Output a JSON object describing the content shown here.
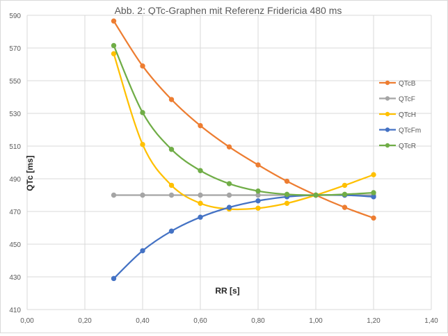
{
  "chart_data": {
    "type": "scatter",
    "title": "Abb. 2: QTc-Graphen mit Referenz Fridericia 480 ms",
    "xlabel": "RR [s]",
    "ylabel": "QTc [ms]",
    "xlim": [
      0,
      1.4
    ],
    "ylim": [
      410,
      590
    ],
    "x_ticks": [
      "0,00",
      "0,20",
      "0,40",
      "0,60",
      "0,80",
      "1,00",
      "1,20",
      "1,40"
    ],
    "y_ticks": [
      "410",
      "430",
      "450",
      "470",
      "490",
      "510",
      "530",
      "550",
      "570",
      "590"
    ],
    "grid": true,
    "legend_position": "right",
    "series": [
      {
        "name": "QTcB",
        "color": "#ed7d31",
        "x": [
          0.3,
          0.4,
          0.5,
          0.6,
          0.7,
          0.8,
          0.9,
          1.0,
          1.1,
          1.2
        ],
        "y": [
          586.5,
          559,
          538.5,
          522.5,
          509.5,
          498.5,
          488.5,
          480,
          472.5,
          466
        ]
      },
      {
        "name": "QTcF",
        "color": "#a5a5a5",
        "x": [
          0.3,
          0.4,
          0.5,
          0.6,
          0.7,
          0.8,
          0.9,
          1.0,
          1.1,
          1.2
        ],
        "y": [
          480,
          480,
          480,
          480,
          480,
          480,
          480,
          480,
          480,
          480
        ]
      },
      {
        "name": "QTcH",
        "color": "#ffc000",
        "x": [
          0.3,
          0.4,
          0.5,
          0.6,
          0.7,
          0.8,
          0.9,
          1.0,
          1.1,
          1.2
        ],
        "y": [
          566.5,
          511,
          486,
          475,
          471.5,
          472,
          475,
          480,
          486,
          492.5
        ]
      },
      {
        "name": "QTcFm",
        "color": "#4472c4",
        "x": [
          0.3,
          0.4,
          0.5,
          0.6,
          0.7,
          0.8,
          0.9,
          1.0,
          1.1,
          1.2
        ],
        "y": [
          429,
          446,
          458,
          466.5,
          472.5,
          476.5,
          479,
          480,
          480,
          479
        ]
      },
      {
        "name": "QTcR",
        "color": "#70ad47",
        "x": [
          0.3,
          0.4,
          0.5,
          0.6,
          0.7,
          0.8,
          0.9,
          1.0,
          1.1,
          1.2
        ],
        "y": [
          571.5,
          530.5,
          508,
          495,
          487,
          482.5,
          480.5,
          480,
          480.5,
          481.5
        ]
      }
    ]
  }
}
